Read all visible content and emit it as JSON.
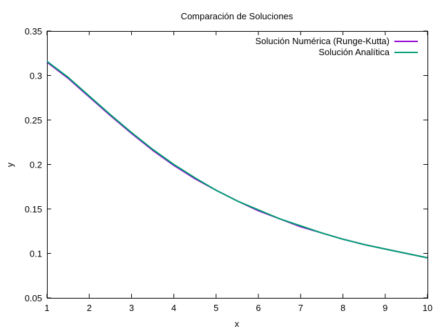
{
  "chart_data": {
    "type": "line",
    "title": "Comparación de Soluciones",
    "xlabel": "x",
    "ylabel": "y",
    "xlim": [
      1,
      10
    ],
    "ylim": [
      0.05,
      0.35
    ],
    "x_ticks": [
      1,
      2,
      3,
      4,
      5,
      6,
      7,
      8,
      9,
      10
    ],
    "y_ticks": [
      0.05,
      0.1,
      0.15,
      0.2,
      0.25,
      0.3,
      0.35
    ],
    "grid": false,
    "legend_position": "top-right",
    "x": [
      1.0,
      1.5,
      2.0,
      2.5,
      3.0,
      3.5,
      4.0,
      4.5,
      5.0,
      5.5,
      6.0,
      6.5,
      7.0,
      7.5,
      8.0,
      8.5,
      9.0,
      9.5,
      10.0
    ],
    "series": [
      {
        "name": "Solución Numérica (Runge-Kutta)",
        "color": "#9400d3",
        "values": [
          0.315,
          0.297,
          0.276,
          0.255,
          0.235,
          0.216,
          0.199,
          0.184,
          0.171,
          0.159,
          0.148,
          0.139,
          0.13,
          0.123,
          0.116,
          0.11,
          0.105,
          0.1,
          0.095
        ]
      },
      {
        "name": "Solución Analítica",
        "color": "#009e73",
        "values": [
          0.316,
          0.298,
          0.277,
          0.256,
          0.236,
          0.217,
          0.2,
          0.185,
          0.171,
          0.159,
          0.149,
          0.139,
          0.131,
          0.123,
          0.116,
          0.11,
          0.105,
          0.1,
          0.095
        ]
      }
    ]
  }
}
